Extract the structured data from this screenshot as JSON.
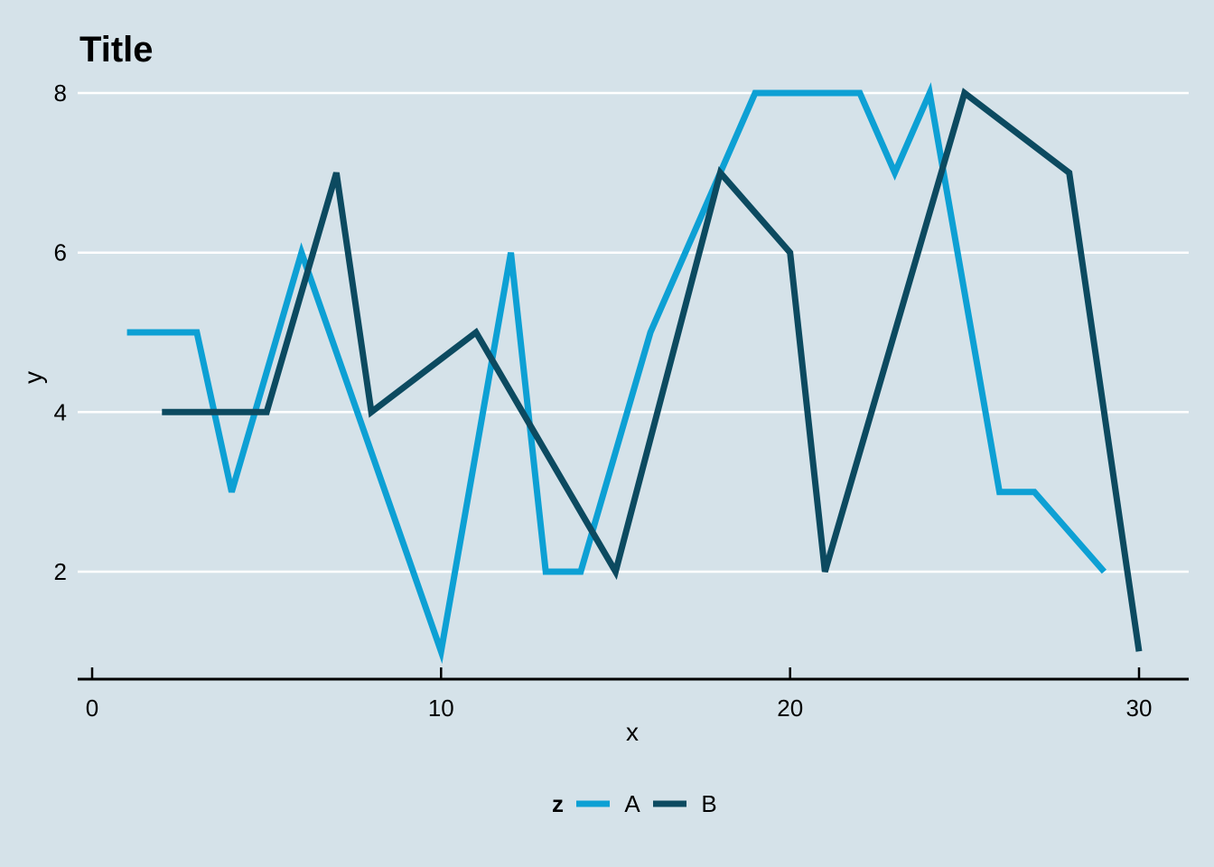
{
  "colors": {
    "background": "#d5e2e9",
    "gridline": "#ffffff",
    "axis_line": "#000000",
    "text": "#000000",
    "series_a": "#0da0d4",
    "series_b": "#0c4a60"
  },
  "chart_data": {
    "type": "line",
    "title": "Title",
    "xlabel": "x",
    "ylabel": "y",
    "legend_title": "z",
    "legend_position": "bottom",
    "grid": "horizontal white gridlines at y ticks only",
    "xlim": [
      0,
      30
    ],
    "ylim": [
      1,
      8
    ],
    "x_ticks": [
      0,
      10,
      20,
      30
    ],
    "y_ticks": [
      2,
      4,
      6,
      8
    ],
    "series": [
      {
        "name": "A",
        "color": "#0da0d4",
        "points": [
          [
            1,
            5
          ],
          [
            3,
            5
          ],
          [
            4,
            3
          ],
          [
            6,
            6
          ],
          [
            10,
            1
          ],
          [
            12,
            6
          ],
          [
            13,
            2
          ],
          [
            14,
            2
          ],
          [
            16,
            5
          ],
          [
            19,
            8
          ],
          [
            22,
            8
          ],
          [
            23,
            7
          ],
          [
            24,
            8
          ],
          [
            26,
            3
          ],
          [
            27,
            3
          ],
          [
            29,
            2
          ]
        ]
      },
      {
        "name": "B",
        "color": "#0c4a60",
        "points": [
          [
            2,
            4
          ],
          [
            5,
            4
          ],
          [
            7,
            7
          ],
          [
            8,
            4
          ],
          [
            11,
            5
          ],
          [
            15,
            2
          ],
          [
            18,
            7
          ],
          [
            20,
            6
          ],
          [
            21,
            2
          ],
          [
            25,
            8
          ],
          [
            28,
            7
          ],
          [
            30,
            1
          ]
        ]
      }
    ]
  }
}
